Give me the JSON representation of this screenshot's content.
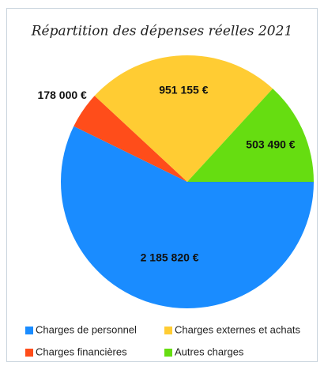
{
  "chart_data": {
    "type": "pie",
    "title": "Répartition des dépenses réelles 2021",
    "series": [
      {
        "name": "Charges de personnel",
        "color": "#1a8cff",
        "values": [
          2185820
        ],
        "value_labels": [
          "2 185 820 €"
        ]
      },
      {
        "name": "Charges financières",
        "color": "#ff4d1a",
        "values": [
          178000
        ],
        "value_labels": [
          "178 000 €"
        ]
      },
      {
        "name": "Charges externes et achats",
        "color": "#ffcc33",
        "values": [
          951155
        ],
        "value_labels": [
          "951 155 €"
        ]
      },
      {
        "name": "Autres charges",
        "color": "#66dd11",
        "values": [
          503490
        ],
        "value_labels": [
          "503 490 €"
        ]
      }
    ],
    "legend": "bottom"
  }
}
